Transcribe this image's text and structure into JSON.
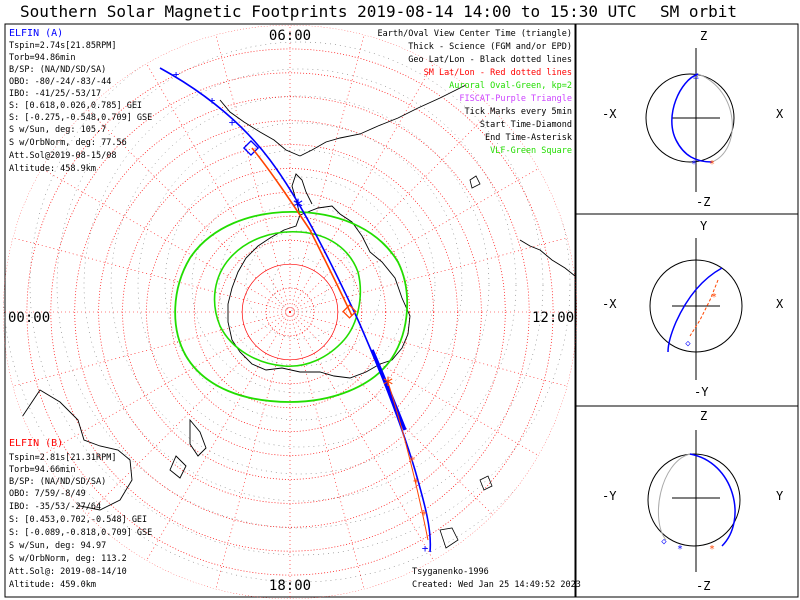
{
  "header": {
    "title": "Southern Solar Magnetic Footprints 2019-08-14 14:00 to 15:30 UTC",
    "orbit_title": "SM orbit"
  },
  "colors": {
    "elfin_a": "#0000ff",
    "elfin_b": "#ff0000",
    "oval": "#22dd00",
    "sm_grid": "#ff0000",
    "footprint_sm": "#ff4400",
    "coast": "#000000",
    "legend_purple": "#cc44ff"
  },
  "elfin_a": {
    "name": "ELFIN (A)",
    "lines": [
      "Tspin=2.74s[21.85RPM]",
      "Torb=94.86min",
      "B/SP: (NA/ND/SD/SA)",
      "OBO: -80/-24/-83/-44",
      "IBO: -41/25/-53/17",
      "S: [0.618,0.026,0.785] GEI",
      "S: [-0.275,-0.548,0.709] GSE",
      "S w/Sun, deg: 105.7",
      "S w/OrbNorm, deg: 77.56",
      "Att.Sol@2019-08-15/08",
      "Altitude: 458.9km"
    ]
  },
  "elfin_b": {
    "name": "ELFIN (B)",
    "lines": [
      "Tspin=2.81s[21.31RPM]",
      "Torb=94.66min",
      "B/SP: (NA/ND/SD/SA)",
      "OBO: 7/59/-8/49",
      "IBO: -35/53/-27/64",
      "S: [0.453,0.702,-0.548] GEI",
      "S: [-0.089,-0.818,0.709] GSE",
      "S w/Sun, deg: 94.97",
      "S w/OrbNorm, deg: 113.2",
      "Att.Sol@: 2019-08-14/10",
      "Altitude: 459.0km"
    ]
  },
  "legend": {
    "items": [
      {
        "text": "Earth/Oval View Center Time (triangle)",
        "color": "#000000"
      },
      {
        "text": "Thick - Science (FGM and/or EPD)",
        "color": "#000000"
      },
      {
        "text": "Geo Lat/Lon - Black dotted lines",
        "color": "#000000"
      },
      {
        "text": "SM Lat/Lon - Red dotted lines",
        "color": "#ff0000"
      },
      {
        "text": "Auroral Oval-Green, kp=2",
        "color": "#22dd00"
      },
      {
        "text": "FISCAT-Purple Triangle",
        "color": "#cc44ff"
      },
      {
        "text": "Tick Marks every 5min",
        "color": "#000000"
      },
      {
        "text": "Start Time-Diamond",
        "color": "#000000"
      },
      {
        "text": "End Time-Asterisk",
        "color": "#000000"
      },
      {
        "text": "VLF-Green Square",
        "color": "#22dd00"
      }
    ]
  },
  "map_labels": {
    "top": "06:00",
    "left": "00:00",
    "right": "12:00",
    "bottom": "18:00"
  },
  "footer": {
    "model": "Tsyganenko-1996",
    "created": "Created: Wed Jan 25 14:49:52 2023"
  },
  "orbit_panels": [
    {
      "top": "Z",
      "bottom": "-Z",
      "left": "-X",
      "right": "X"
    },
    {
      "top": "Y",
      "bottom": "-Y",
      "left": "-X",
      "right": "X"
    },
    {
      "top": "Z",
      "bottom": "-Z",
      "left": "-Y",
      "right": "Y"
    }
  ],
  "chart_data": {
    "type": "polar-map",
    "projection": "south-pole SM magnetic local time",
    "mlt_labels": [
      "00:00",
      "06:00",
      "12:00",
      "18:00"
    ],
    "latitude_circles_deg": [
      -85,
      -80,
      -75,
      -70,
      -65,
      -60,
      -55,
      -50,
      -45,
      -40,
      -35,
      -30
    ],
    "tick_interval_min": 5,
    "series": [
      {
        "name": "ELFIN (A) footprint",
        "color": "#0000ff"
      },
      {
        "name": "ELFIN (B) footprint",
        "color": "#ff0000"
      }
    ]
  }
}
